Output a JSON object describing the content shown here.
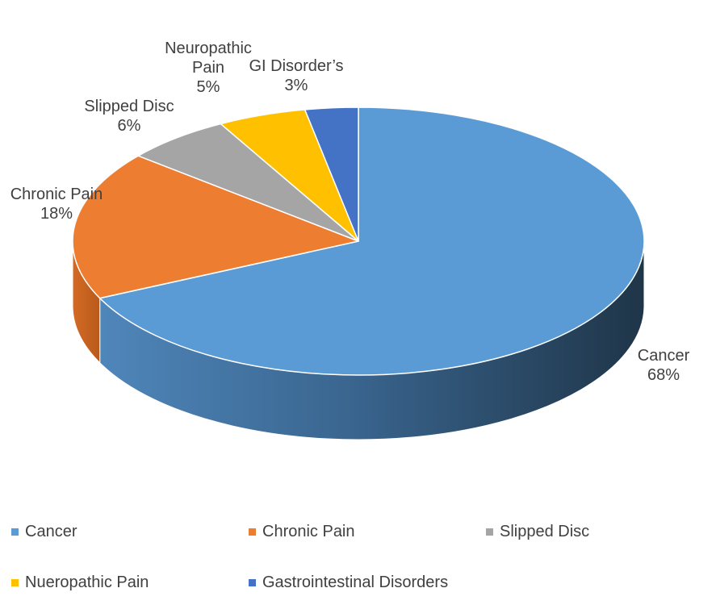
{
  "chart_data": {
    "type": "pie",
    "categories": [
      "Cancer",
      "Chronic Pain",
      "Slipped Disc",
      "Neuropathic Pain",
      "GI Disorder’s"
    ],
    "values": [
      68,
      18,
      6,
      5,
      3
    ],
    "data_labels": [
      {
        "name": "Cancer",
        "value": "68%"
      },
      {
        "name": "Chronic Pain",
        "value": "18%"
      },
      {
        "name": "Slipped Disc",
        "value": "6%"
      },
      {
        "name": "Neuropathic Pain",
        "value": "5%"
      },
      {
        "name": "GI Disorder’s",
        "value": "3%"
      }
    ],
    "legend": [
      "Cancer",
      "Chronic Pain",
      "Slipped Disc",
      "Nueropathic Pain",
      "Gastrointestinal Disorders"
    ],
    "colors": [
      "#5b9bd5",
      "#ed7d31",
      "#a5a5a5",
      "#ffc000",
      "#4472c4"
    ],
    "legend_position": "bottom",
    "style": "3d"
  }
}
